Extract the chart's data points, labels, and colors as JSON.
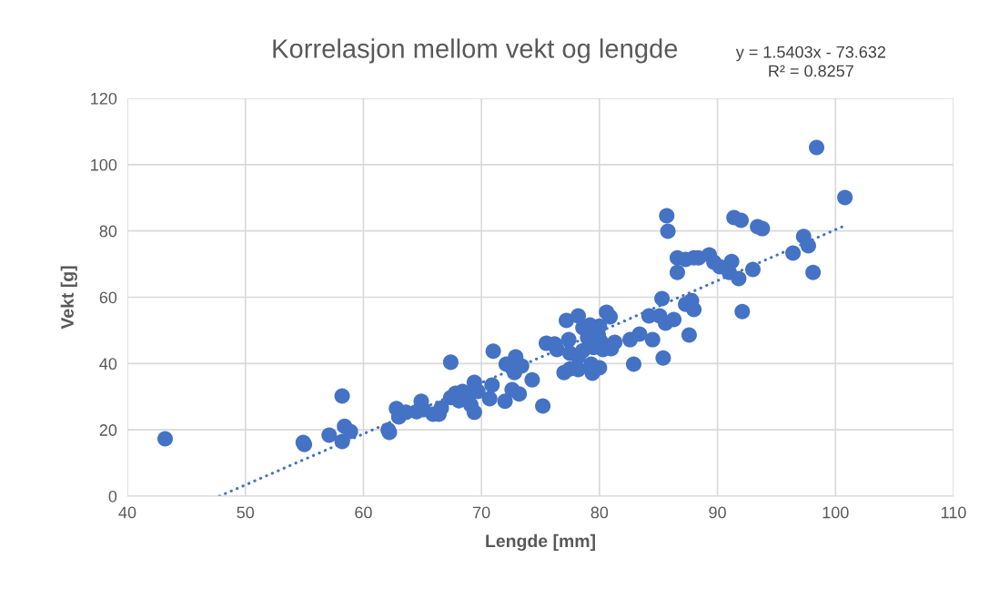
{
  "chart_data": {
    "type": "scatter",
    "title": "Korrelasjon mellom vekt og lengde",
    "xlabel": "Lengde [mm]",
    "ylabel": "Vekt [g]",
    "annotations": [
      "y = 1.5403x - 73.632\nR² = 0.8257"
    ],
    "xlim": [
      40,
      110
    ],
    "xticks": [
      40,
      50,
      60,
      70,
      80,
      90,
      100,
      110
    ],
    "ylim": [
      0,
      120
    ],
    "yticks": [
      0,
      20,
      40,
      60,
      80,
      100,
      120
    ],
    "grid": true,
    "legend": false,
    "series": [
      {
        "color": "#4472c4",
        "marker": "circle",
        "x": [
          43.2,
          54.9,
          55.0,
          57.1,
          58.2,
          58.4,
          58.2,
          58.9,
          62.1,
          62.2,
          62.8,
          63.0,
          63.6,
          64.5,
          64.9,
          65.1,
          65.9,
          66.4,
          66.6,
          67.4,
          67.4,
          67.8,
          68.1,
          68.4,
          69.0,
          69.1,
          69.4,
          69.7,
          69.4,
          70.7,
          70.9,
          71.0,
          72.0,
          72.1,
          72.6,
          72.8,
          72.9,
          73.2,
          73.4,
          74.3,
          75.2,
          75.5,
          76.2,
          76.4,
          77.0,
          77.2,
          77.4,
          77.5,
          77.5,
          78.2,
          78.2,
          78.2,
          78.6,
          78.6,
          79.0,
          79.2,
          79.3,
          79.4,
          79.5,
          79.9,
          80.0,
          80.0,
          80.1,
          80.3,
          80.6,
          80.9,
          81.0,
          81.3,
          82.6,
          82.9,
          85.4,
          85.7,
          85.8,
          86.6,
          87.3,
          88.0,
          88.4,
          89.3,
          89.7,
          90.2,
          91.0,
          91.2,
          91.8,
          91.4,
          92.0,
          93.4,
          93.8,
          93.0,
          96.4,
          97.3,
          97.7,
          98.1,
          98.4,
          100.8,
          86.6,
          85.3,
          87.3,
          87.8,
          88.0,
          92.1,
          84.2,
          85.1,
          85.6,
          86.3,
          83.4,
          84.5,
          87.6
        ],
        "values": [
          17.3,
          16.2,
          15.6,
          18.4,
          30.2,
          21.1,
          16.5,
          19.5,
          20.0,
          19.2,
          26.4,
          23.9,
          25.3,
          25.5,
          28.6,
          26.1,
          24.7,
          24.7,
          26.6,
          40.4,
          29.7,
          31.0,
          28.8,
          31.6,
          31.0,
          27.5,
          34.3,
          31.6,
          25.3,
          29.4,
          33.5,
          43.7,
          28.6,
          39.8,
          32.1,
          37.3,
          42.0,
          30.8,
          39.3,
          35.1,
          27.2,
          46.1,
          45.9,
          44.2,
          37.3,
          53.0,
          47.2,
          43.1,
          38.4,
          54.4,
          42.0,
          38.2,
          50.8,
          43.9,
          47.8,
          51.6,
          39.8,
          37.1,
          44.8,
          48.6,
          51.3,
          38.7,
          46.7,
          44.2,
          55.5,
          54.1,
          44.5,
          46.4,
          47.2,
          39.8,
          41.7,
          84.6,
          79.9,
          71.9,
          71.4,
          71.9,
          71.9,
          72.8,
          70.6,
          69.2,
          67.5,
          70.8,
          65.6,
          84.0,
          83.2,
          81.3,
          80.7,
          68.4,
          73.3,
          78.3,
          75.5,
          67.5,
          105.2,
          90.1,
          67.5,
          59.6,
          57.9,
          59.0,
          56.3,
          55.7,
          54.4,
          54.4,
          52.2,
          53.3,
          48.9,
          47.2,
          48.6
        ]
      },
      {
        "type": "line",
        "color": "#4472c4",
        "line_style": "dotted",
        "marker": "none",
        "x": [
          47.8,
          100.8
        ],
        "values": [
          0,
          81.6
        ]
      }
    ]
  }
}
